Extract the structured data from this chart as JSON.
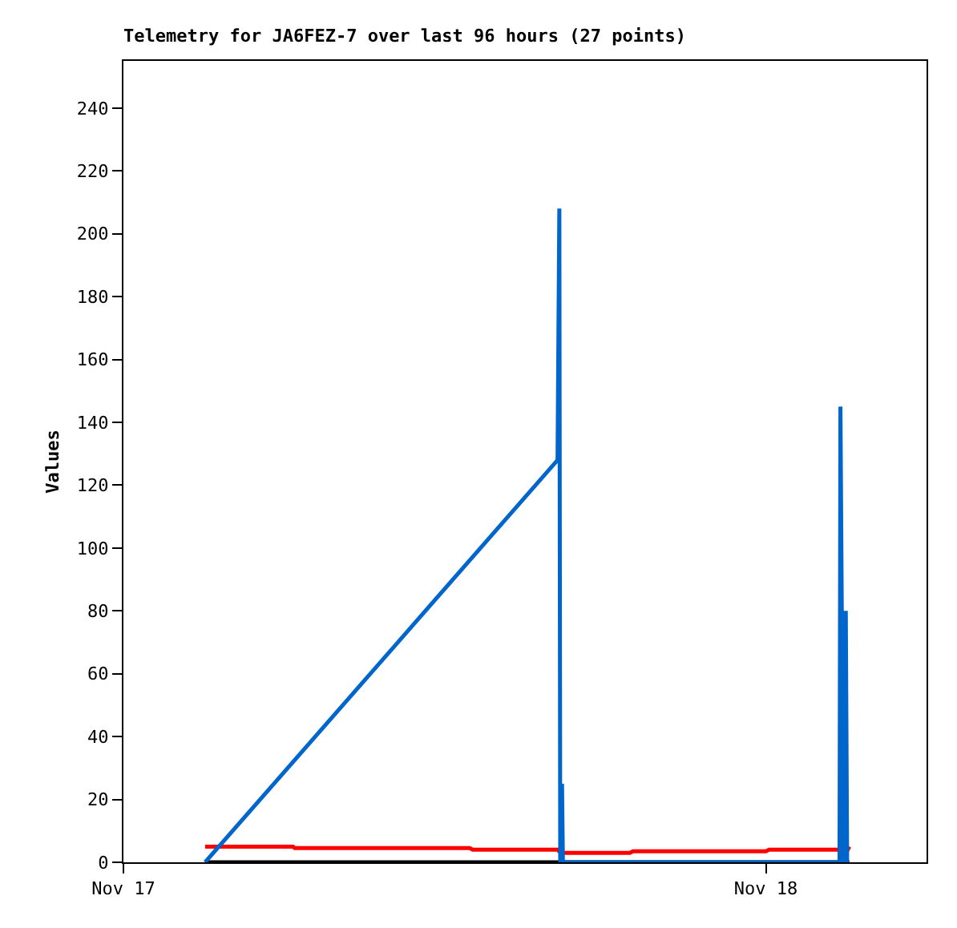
{
  "chart_data": {
    "type": "line",
    "title": "Telemetry for JA6FEZ-7 over last 96 hours (27 points)",
    "ylabel": "Values",
    "xlim": [
      "--11-17T00:00",
      "--11-18T06:00"
    ],
    "xticks": [
      {
        "value": "--11-17",
        "label": "Nov 17"
      },
      {
        "value": "--11-18",
        "label": "Nov 18"
      }
    ],
    "ylim": [
      0,
      255
    ],
    "yticks": [
      0,
      20,
      40,
      60,
      80,
      100,
      120,
      140,
      160,
      180,
      200,
      220,
      240
    ],
    "marker": "none",
    "line_style": "solid",
    "series": [
      {
        "color": "#000000",
        "x": [
          "--11-17T03:03",
          "--11-18T03:07"
        ],
        "values": [
          0,
          0
        ]
      },
      {
        "color": "#ff0000",
        "x": [
          "--11-17T03:03",
          "--11-17T06:20",
          "--11-17T06:24",
          "--11-17T12:56",
          "--11-17T13:03",
          "--11-17T16:13",
          "--11-17T16:20",
          "--11-17T18:55",
          "--11-17T19:02",
          "--11-18T00:00",
          "--11-18T00:07",
          "--11-18T02:49",
          "--11-18T02:56",
          "--11-18T03:07"
        ],
        "values": [
          5,
          5,
          4.5,
          4.5,
          4,
          4,
          3,
          3,
          3.5,
          3.5,
          4,
          4,
          2,
          5
        ]
      },
      {
        "color": "#0066cc",
        "x": [
          "--11-17T03:03",
          "--11-17T16:13",
          "--11-17T16:17",
          "--11-17T16:19",
          "--11-17T16:23",
          "--11-17T16:25",
          "--11-18T02:45",
          "--11-18T02:47",
          "--11-18T02:50",
          "--11-18T02:53",
          "--11-18T02:56",
          "--11-18T02:59",
          "--11-18T03:02"
        ],
        "values": [
          0,
          128,
          208,
          0,
          25,
          0,
          0,
          145,
          80,
          0,
          40,
          80,
          0
        ]
      }
    ]
  }
}
